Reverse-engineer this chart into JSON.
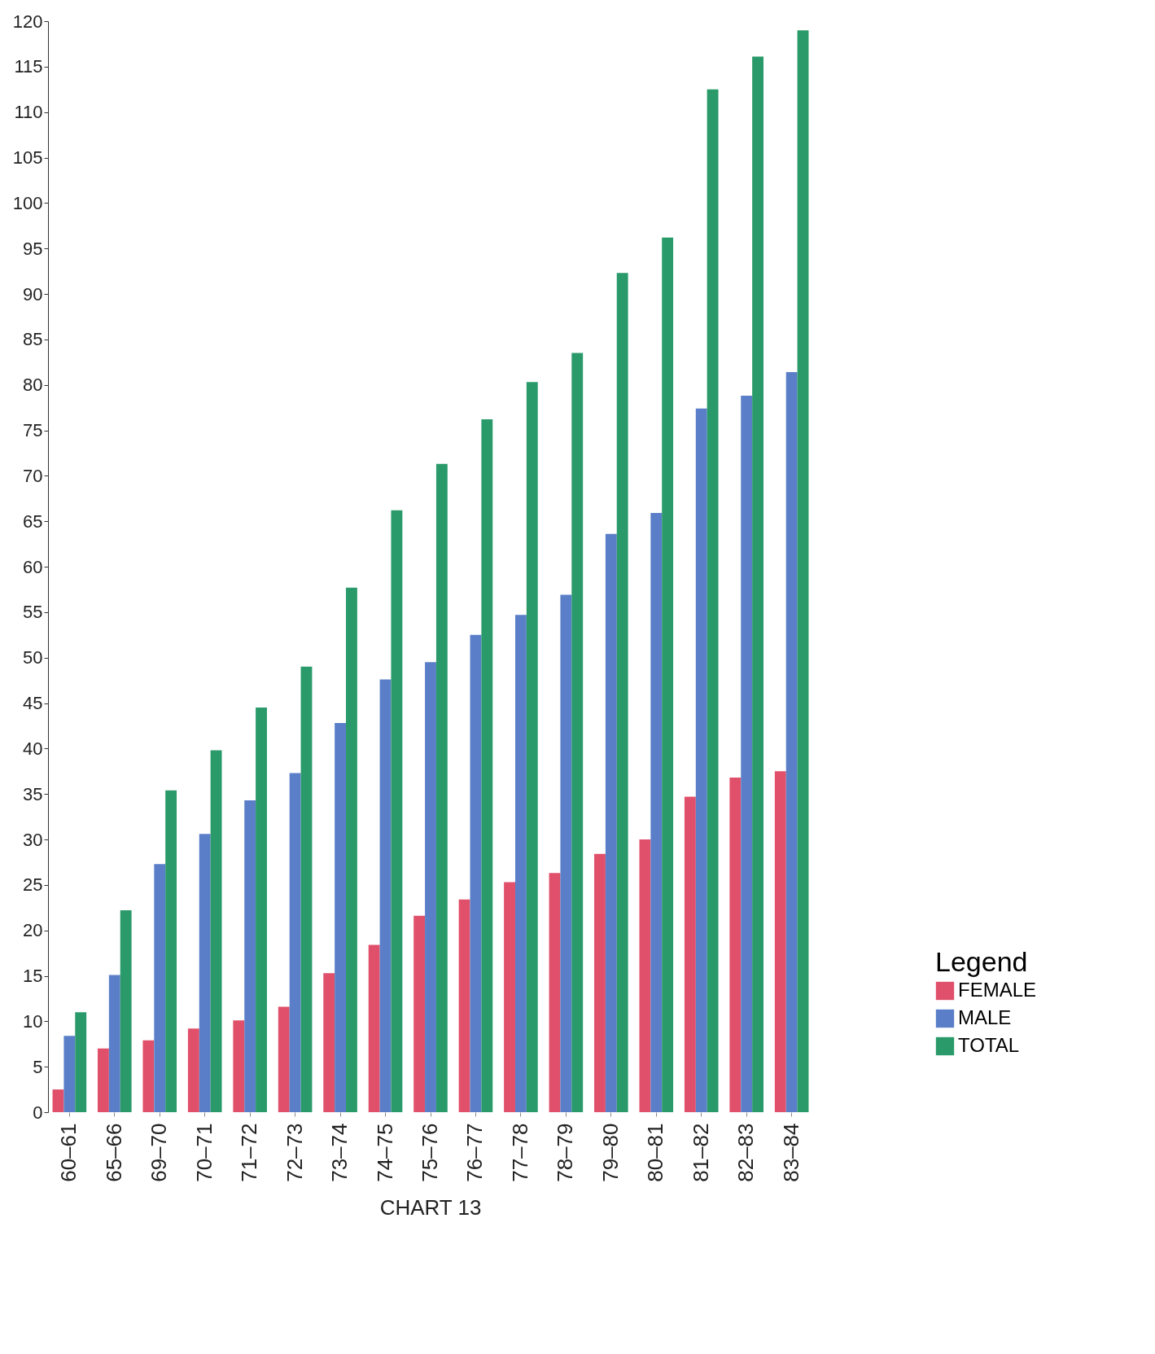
{
  "chart_data": {
    "type": "bar",
    "categories": [
      "60–61",
      "65–66",
      "69–70",
      "70–71",
      "71–72",
      "72–73",
      "73–74",
      "74–75",
      "75–76",
      "76–77",
      "77–78",
      "78–79",
      "79–80",
      "80–81",
      "81–82",
      "82–83",
      "83–84"
    ],
    "series": [
      {
        "name": "FEMALE",
        "color": "#e0506a",
        "values": [
          2.5,
          7.0,
          7.9,
          9.2,
          10.1,
          11.6,
          15.3,
          18.4,
          21.6,
          23.4,
          25.3,
          26.3,
          28.4,
          30.0,
          34.7,
          36.8,
          37.5
        ]
      },
      {
        "name": "MALE",
        "color": "#5a7fc8",
        "values": [
          8.4,
          15.1,
          27.3,
          30.6,
          34.3,
          37.3,
          42.8,
          47.6,
          49.5,
          52.5,
          54.7,
          56.9,
          63.6,
          65.9,
          77.4,
          78.8,
          81.4
        ]
      },
      {
        "name": "TOTAL",
        "color": "#2a9a6a",
        "values": [
          11.0,
          22.2,
          35.4,
          39.8,
          44.5,
          49.0,
          57.7,
          66.2,
          71.3,
          76.2,
          80.3,
          83.5,
          92.3,
          96.2,
          112.5,
          116.1,
          119.0
        ]
      }
    ],
    "ylim": [
      0,
      120
    ],
    "yticks": [
      0,
      5,
      10,
      15,
      20,
      25,
      30,
      35,
      40,
      45,
      50,
      55,
      60,
      65,
      70,
      75,
      80,
      85,
      90,
      95,
      100,
      105,
      110,
      115,
      120
    ],
    "legend": "bottom right",
    "legend_title": "Legend",
    "grid": false,
    "annotations": [
      "CHART 13"
    ]
  }
}
